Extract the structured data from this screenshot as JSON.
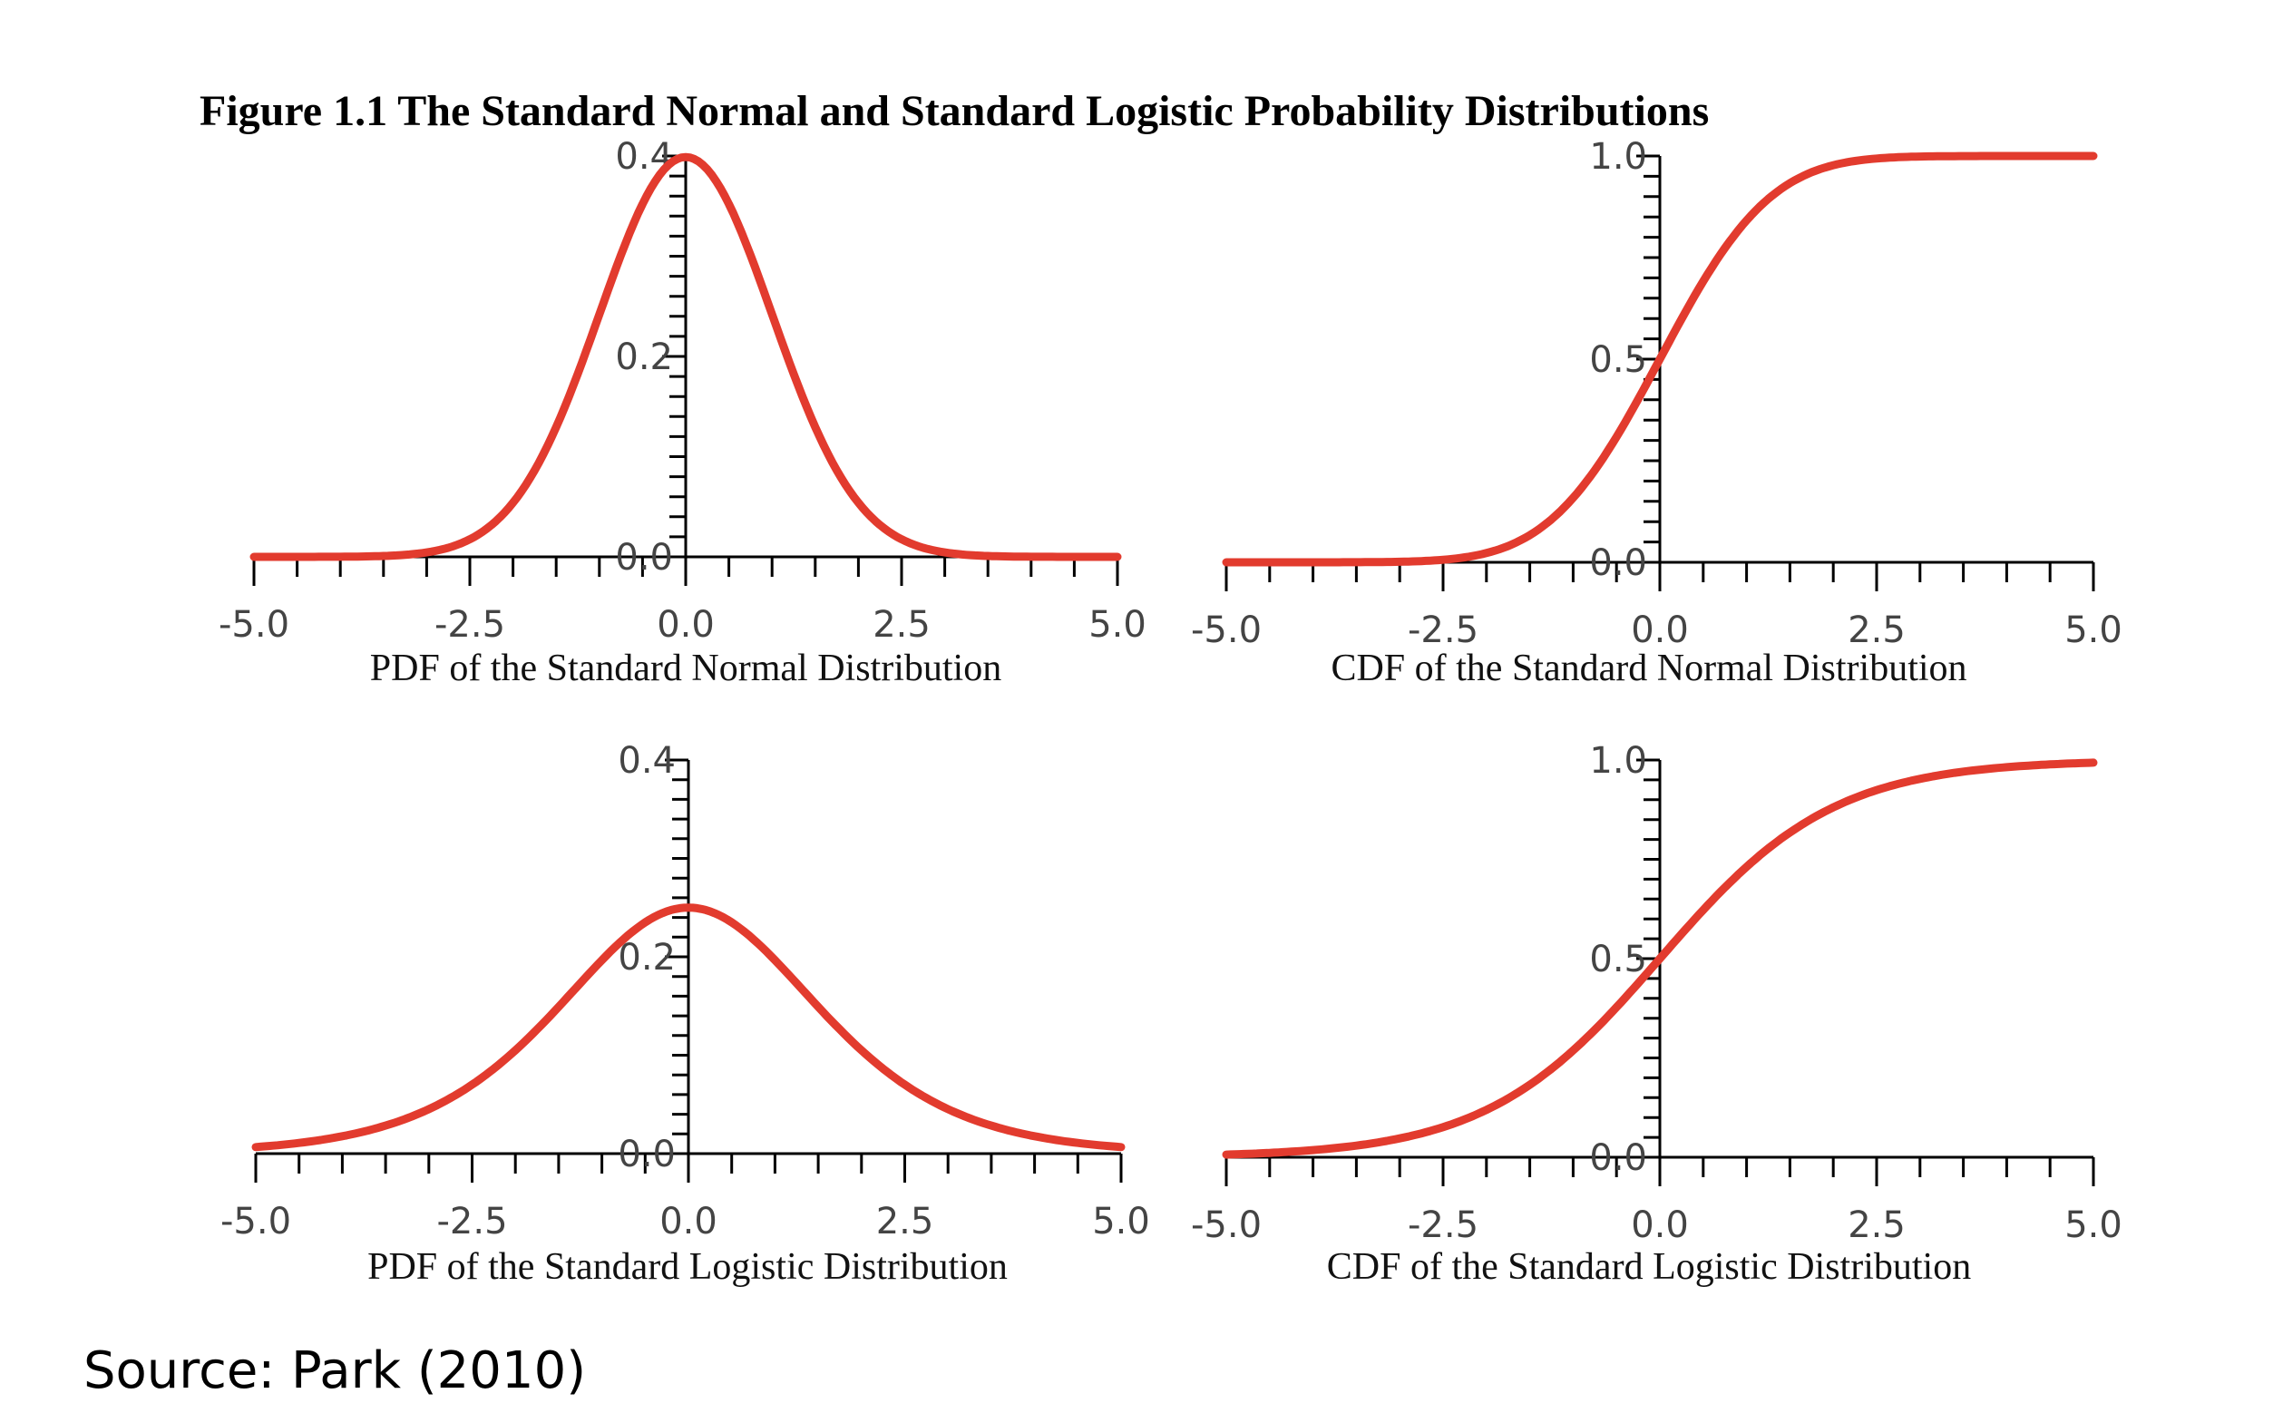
{
  "figure_title": "Figure 1.1 The Standard Normal and Standard Logistic Probability Distributions",
  "source_note": "Source: Park (2010)",
  "colors": {
    "curve": "#e23b2e",
    "axis": "#000000",
    "tick_text": "#444444"
  },
  "chart_data": [
    {
      "type": "line",
      "caption": "PDF of the Standard Normal Distribution",
      "function": "normal_pdf",
      "xlim": [
        -5,
        5
      ],
      "ylim": [
        0,
        0.4
      ],
      "x_ticks": [
        "-5.0",
        "-2.5",
        "0.0",
        "2.5",
        "5.0"
      ],
      "y_ticks": [
        "0.0",
        "0.2",
        "0.4"
      ],
      "x": [
        -5,
        -4.5,
        -4,
        -3.5,
        -3,
        -2.5,
        -2,
        -1.5,
        -1,
        -0.5,
        0,
        0.5,
        1,
        1.5,
        2,
        2.5,
        3,
        3.5,
        4,
        4.5,
        5
      ],
      "y": [
        0.0,
        0.0,
        0.0001,
        0.0009,
        0.0044,
        0.0175,
        0.054,
        0.1295,
        0.242,
        0.3521,
        0.3989,
        0.3521,
        0.242,
        0.1295,
        0.054,
        0.0175,
        0.0044,
        0.0009,
        0.0001,
        0.0,
        0.0
      ]
    },
    {
      "type": "line",
      "caption": "CDF of the Standard Normal Distribution",
      "function": "normal_cdf",
      "xlim": [
        -5,
        5
      ],
      "ylim": [
        0,
        1
      ],
      "x_ticks": [
        "-5.0",
        "-2.5",
        "0.0",
        "2.5",
        "5.0"
      ],
      "y_ticks": [
        "0.0",
        "0.5",
        "1.0"
      ],
      "x": [
        -5,
        -4.5,
        -4,
        -3.5,
        -3,
        -2.5,
        -2,
        -1.5,
        -1,
        -0.5,
        0,
        0.5,
        1,
        1.5,
        2,
        2.5,
        3,
        3.5,
        4,
        4.5,
        5
      ],
      "y": [
        0.0,
        0.0,
        0.0,
        0.0002,
        0.0013,
        0.0062,
        0.0228,
        0.0668,
        0.1587,
        0.3085,
        0.5,
        0.6915,
        0.8413,
        0.9332,
        0.9772,
        0.9938,
        0.9987,
        0.9998,
        1.0,
        1.0,
        1.0
      ]
    },
    {
      "type": "line",
      "caption": "PDF of the Standard Logistic Distribution",
      "function": "logistic_pdf",
      "xlim": [
        -5,
        5
      ],
      "ylim": [
        0,
        0.4
      ],
      "x_ticks": [
        "-5.0",
        "-2.5",
        "0.0",
        "2.5",
        "5.0"
      ],
      "y_ticks": [
        "0.0",
        "0.2",
        "0.4"
      ],
      "x": [
        -5,
        -4.5,
        -4,
        -3.5,
        -3,
        -2.5,
        -2,
        -1.5,
        -1,
        -0.5,
        0,
        0.5,
        1,
        1.5,
        2,
        2.5,
        3,
        3.5,
        4,
        4.5,
        5
      ],
      "y": [
        0.0066,
        0.0109,
        0.0177,
        0.0287,
        0.0452,
        0.0701,
        0.105,
        0.1491,
        0.1966,
        0.235,
        0.25,
        0.235,
        0.1966,
        0.1491,
        0.105,
        0.0701,
        0.0452,
        0.0287,
        0.0177,
        0.0109,
        0.0066
      ]
    },
    {
      "type": "line",
      "caption": "CDF of the Standard Logistic Distribution",
      "function": "logistic_cdf",
      "xlim": [
        -5,
        5
      ],
      "ylim": [
        0,
        1
      ],
      "x_ticks": [
        "-5.0",
        "-2.5",
        "0.0",
        "2.5",
        "5.0"
      ],
      "y_ticks": [
        "0.0",
        "0.5",
        "1.0"
      ],
      "x": [
        -5,
        -4.5,
        -4,
        -3.5,
        -3,
        -2.5,
        -2,
        -1.5,
        -1,
        -0.5,
        0,
        0.5,
        1,
        1.5,
        2,
        2.5,
        3,
        3.5,
        4,
        4.5,
        5
      ],
      "y": [
        0.0067,
        0.011,
        0.018,
        0.0293,
        0.0474,
        0.0759,
        0.1192,
        0.1824,
        0.2689,
        0.3775,
        0.5,
        0.6225,
        0.7311,
        0.8176,
        0.8808,
        0.9241,
        0.9526,
        0.9707,
        0.982,
        0.989,
        0.9933
      ]
    }
  ]
}
